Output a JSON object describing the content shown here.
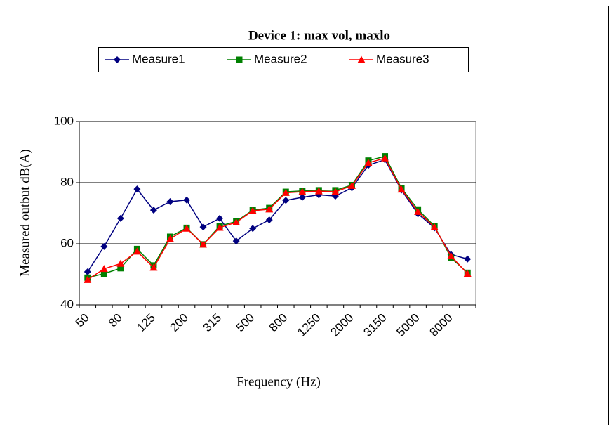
{
  "chart_data": {
    "type": "line",
    "title": "Device 1: max vol, maxlo",
    "x_label": "Frequency (Hz)",
    "y_label": "Measured outbut dB(A)",
    "categories": [
      "50",
      null,
      "80",
      null,
      "125",
      null,
      "200",
      null,
      "315",
      null,
      "500",
      null,
      "800",
      null,
      "1250",
      null,
      "2000",
      null,
      "3150",
      null,
      "5000",
      null,
      "8000",
      null
    ],
    "ylim": [
      40,
      100
    ],
    "yticks": [
      40,
      60,
      80,
      100
    ],
    "grid": true,
    "series": [
      {
        "name": "Measure1",
        "color": "#000080",
        "marker": "diamond",
        "values": [
          50.8,
          59.1,
          68.3,
          77.9,
          71,
          73.8,
          74.3,
          65.5,
          68.3,
          60.9,
          65,
          67.8,
          74.2,
          75.2,
          76,
          75.6,
          78.3,
          85.7,
          87.5,
          77.6,
          69.8,
          65.2,
          56.5,
          55
        ]
      },
      {
        "name": "Measure2",
        "color": "#008000",
        "marker": "square",
        "values": [
          48.9,
          50.2,
          52,
          58.3,
          52.9,
          62.3,
          65.2,
          59.8,
          65.8,
          67.3,
          71,
          71.7,
          77,
          77.3,
          77.5,
          77.5,
          79.2,
          87.2,
          88.6,
          78.2,
          71.2,
          65.8,
          55.4,
          50.5
        ]
      },
      {
        "name": "Measure3",
        "color": "#ff0000",
        "marker": "triangle",
        "values": [
          48.2,
          51.8,
          53.5,
          57.5,
          52.2,
          61.6,
          65,
          59.8,
          65.3,
          67,
          70.8,
          71.3,
          76.7,
          77,
          77.2,
          77,
          79,
          86.5,
          88,
          77.8,
          70.5,
          65.5,
          56,
          50.2
        ]
      }
    ]
  }
}
